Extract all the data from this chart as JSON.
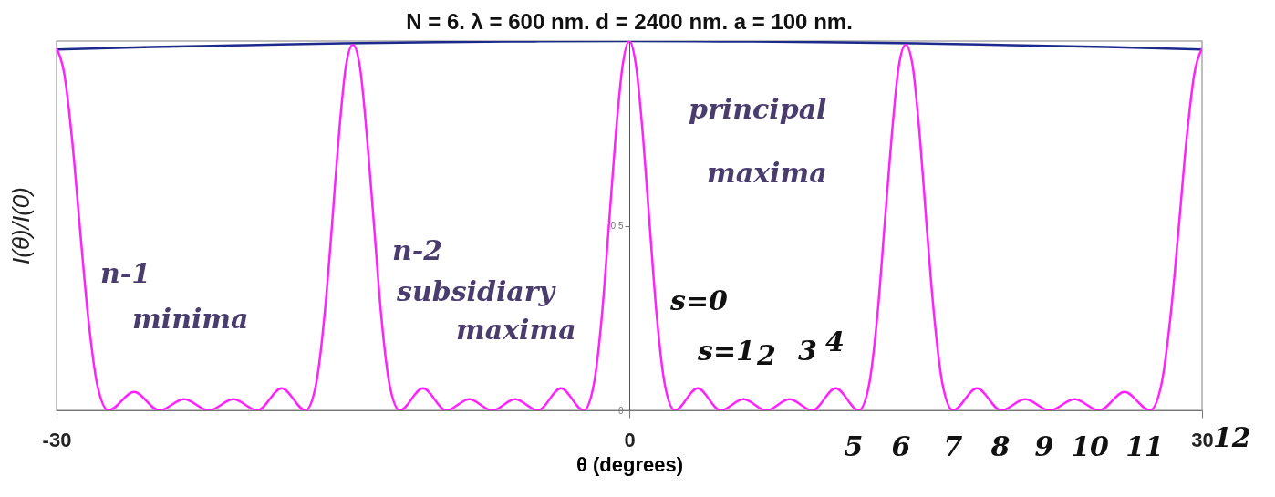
{
  "chart_data": {
    "type": "line",
    "title": "N = 6.  λ = 600 nm.  d = 2400 nm.  a = 100 nm.",
    "xlabel": "θ  (degrees)",
    "ylabel": "I(θ)/I(0)",
    "xlim": [
      -30,
      30
    ],
    "xticks": [
      -30,
      0,
      30
    ],
    "ylim": [
      0,
      1
    ],
    "yticks": [
      0,
      0.5
    ],
    "grid": false,
    "marker": "none",
    "line_style": "solid",
    "series": [
      {
        "color": "#1c2a8c",
        "x": [
          -30,
          -25,
          -20,
          -15,
          -10,
          -5,
          0,
          5,
          10,
          15,
          20,
          25,
          30
        ],
        "values": [
          0.977,
          0.984,
          0.989,
          0.994,
          0.997,
          0.999,
          1,
          0.999,
          0.997,
          0.994,
          0.989,
          0.984,
          0.977
        ]
      },
      {
        "color": "#ff22ff",
        "x": [
          -30,
          -29.59,
          -29.18,
          -28.77,
          -28.36,
          -27.87,
          -27.28,
          -25.94,
          -24.62,
          -23.32,
          -22.02,
          -20.74,
          -19.47,
          -18.21,
          -16.96,
          -16.41,
          -15.96,
          -15.59,
          -15.22,
          -14.85,
          -14.48,
          -14.11,
          -13.74,
          -13.37,
          -13.0,
          -12.56,
          -12.02,
          -10.81,
          -9.59,
          -8.39,
          -7.18,
          -5.98,
          -4.78,
          -3.58,
          -2.39,
          -1.86,
          -1.43,
          -1.07,
          -0.72,
          -0.36,
          0,
          0.36,
          0.72,
          1.07,
          1.43,
          1.86,
          2.39,
          3.58,
          4.78,
          5.98,
          7.18,
          8.39,
          9.59,
          10.81,
          12.02,
          12.56,
          13.0,
          13.37,
          13.74,
          14.11,
          14.48,
          14.85,
          15.22,
          15.59,
          15.96,
          16.41,
          16.96,
          18.21,
          19.47,
          20.74,
          22.02,
          23.32,
          24.62,
          25.94,
          27.28,
          27.87,
          28.36,
          28.77,
          29.18,
          29.59,
          30
        ],
        "values": [
          0.98,
          0.91,
          0.73,
          0.49,
          0.26,
          0.07,
          0,
          0.05,
          0,
          0.03,
          0,
          0.03,
          0,
          0.06,
          0,
          0.07,
          0.26,
          0.49,
          0.74,
          0.93,
          0.99,
          0.93,
          0.74,
          0.5,
          0.26,
          0.07,
          0,
          0.06,
          0,
          0.03,
          0,
          0.03,
          0,
          0.06,
          0,
          0.07,
          0.26,
          0.5,
          0.74,
          0.93,
          1,
          0.93,
          0.74,
          0.5,
          0.26,
          0.07,
          0,
          0.06,
          0,
          0.03,
          0,
          0.03,
          0,
          0.06,
          0,
          0.07,
          0.26,
          0.5,
          0.74,
          0.93,
          0.99,
          0.93,
          0.74,
          0.49,
          0.26,
          0.07,
          0,
          0.06,
          0,
          0.03,
          0,
          0.03,
          0,
          0.05,
          0,
          0.07,
          0.26,
          0.49,
          0.73,
          0.91,
          0.98
        ]
      }
    ],
    "annotations": [
      "principal",
      "maxima",
      "n-1",
      "minima",
      "n-2",
      "subsidiary",
      "maxima",
      "s=0",
      "s=1",
      "2",
      "3",
      "4",
      "5",
      "6",
      "7",
      "8",
      "9",
      "10",
      "11",
      "12"
    ]
  }
}
